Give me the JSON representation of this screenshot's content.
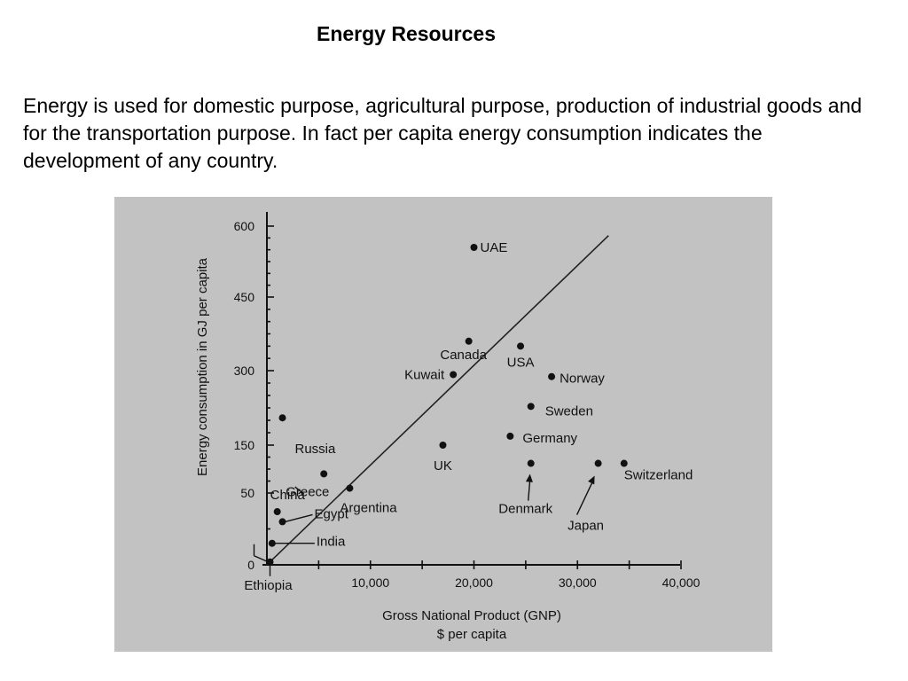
{
  "page": {
    "title": "Energy Resources",
    "paragraph": "Energy is used for domestic purpose, agricultural purpose, production of industrial goods and for the transportation purpose. In fact per capita energy consumption indicates the development of any country."
  },
  "chart_data": {
    "type": "scatter",
    "xlabel": "Gross National Product (GNP)",
    "xlabel_units": "$ per capita",
    "ylabel": "Energy consumption in GJ per capita",
    "x_ticks": [
      0,
      10000,
      20000,
      30000,
      40000
    ],
    "x_tick_labels": [
      "10,000",
      "20,000",
      "30,000",
      "40,000"
    ],
    "y_ticks": [
      0,
      50,
      150,
      300,
      450,
      600
    ],
    "y_tick_labels": [
      "0",
      "50",
      "150",
      "300",
      "450",
      "600"
    ],
    "grid": false,
    "points": [
      {
        "name": "UAE",
        "x": 20000,
        "y": 555
      },
      {
        "name": "Canada",
        "x": 19500,
        "y": 360
      },
      {
        "name": "USA",
        "x": 24500,
        "y": 350
      },
      {
        "name": "Kuwait",
        "x": 18000,
        "y": 292
      },
      {
        "name": "Norway",
        "x": 27500,
        "y": 288
      },
      {
        "name": "Sweden",
        "x": 25500,
        "y": 228
      },
      {
        "name": "Russia",
        "x": 1500,
        "y": 205
      },
      {
        "name": "Germany",
        "x": 23500,
        "y": 168
      },
      {
        "name": "UK",
        "x": 17000,
        "y": 150
      },
      {
        "name": "Denmark",
        "x": 25500,
        "y": 112
      },
      {
        "name": "Japan",
        "x": 32000,
        "y": 112
      },
      {
        "name": "Switzerland",
        "x": 34500,
        "y": 112
      },
      {
        "name": "Greece",
        "x": 5500,
        "y": 90
      },
      {
        "name": "Argentina",
        "x": 8000,
        "y": 60
      },
      {
        "name": "China",
        "x": 1000,
        "y": 37
      },
      {
        "name": "Egypt",
        "x": 1500,
        "y": 30
      },
      {
        "name": "India",
        "x": 500,
        "y": 15
      },
      {
        "name": "Ethiopia",
        "x": 300,
        "y": 2
      }
    ],
    "trend_line": {
      "from": {
        "x": 0,
        "y": 0
      },
      "to": {
        "x": 33000,
        "y": 580
      }
    }
  }
}
